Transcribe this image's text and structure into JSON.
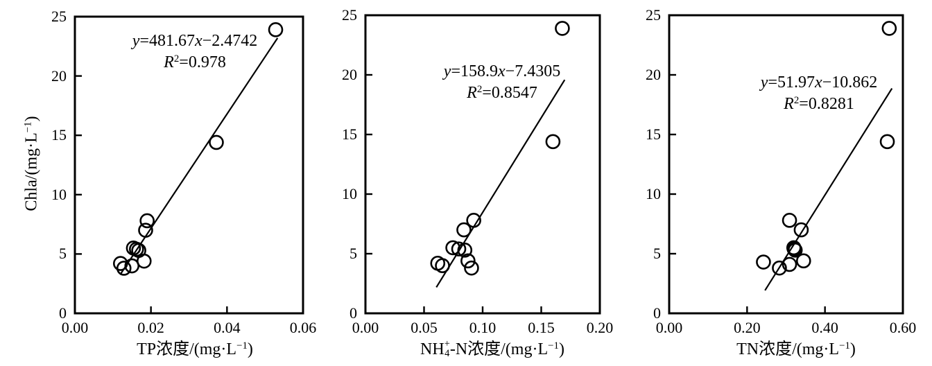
{
  "figure": {
    "background": "#ffffff",
    "ink": "#000000",
    "marker": "open-circle",
    "shared_y_tick_labels": [
      "0",
      "5",
      "10",
      "15",
      "20",
      "25"
    ]
  },
  "chart_data": [
    {
      "id": "chla-vs-tp",
      "type": "scatter",
      "title": "",
      "xlabel_text": "TP浓度/(mg·L⁻¹)",
      "ylabel_text": "Chla/(mg·L⁻¹)",
      "xlabel": {
        "pre": "TP浓度/(mg·L",
        "sup": "−1",
        "post": ")"
      },
      "ylabel": {
        "pre": "Chla/(mg·L",
        "sup": "−1",
        "post": ")"
      },
      "xlim": [
        0,
        0.06
      ],
      "ylim": [
        0,
        25
      ],
      "x_tick_values": [
        0,
        0.02,
        0.04,
        0.06
      ],
      "x_tick_labels": [
        "0.00",
        "0.02",
        "0.04",
        "0.06"
      ],
      "y_tick_values": [
        0,
        5,
        10,
        15,
        20,
        25
      ],
      "y_tick_labels": [
        "0",
        "5",
        "10",
        "15",
        "20",
        "25"
      ],
      "points": [
        [
          0.012,
          4.2
        ],
        [
          0.0129,
          3.8
        ],
        [
          0.015,
          4.0
        ],
        [
          0.0154,
          5.5
        ],
        [
          0.0162,
          5.4
        ],
        [
          0.0168,
          5.3
        ],
        [
          0.0182,
          4.4
        ],
        [
          0.0186,
          7.0
        ],
        [
          0.019,
          7.8
        ],
        [
          0.0372,
          14.4
        ],
        [
          0.0528,
          23.9
        ]
      ],
      "trend": {
        "slope": 481.67,
        "intercept": -2.4742,
        "x_start": 0.0119,
        "x_end": 0.0533
      },
      "equation_text": "y=481.67x−2.4742",
      "r2_text": "R²=0.978",
      "equation": {
        "y_var": "y",
        "mid": "=481.67",
        "x_var": "x",
        "tail": "−2.4742"
      },
      "r2": {
        "r_var": "R",
        "sup": "2",
        "tail": "=0.978"
      }
    },
    {
      "id": "chla-vs-nh4n",
      "type": "scatter",
      "title": "",
      "xlabel_text": "NH₄⁺-N浓度/(mg·L⁻¹)",
      "xlabel": {
        "pre1": "NH",
        "stack_sup": "+",
        "stack_sub": "4",
        "pre2": "-N浓度/(mg·L",
        "sup": "−1",
        "post": ")"
      },
      "xlim": [
        0,
        0.2
      ],
      "ylim": [
        0,
        25
      ],
      "x_tick_values": [
        0,
        0.05,
        0.1,
        0.15,
        0.2
      ],
      "x_tick_labels": [
        "0.00",
        "0.05",
        "0.10",
        "0.15",
        "0.20"
      ],
      "y_tick_values": [
        0,
        5,
        10,
        15,
        20,
        25
      ],
      "y_tick_labels": [
        "0",
        "5",
        "10",
        "15",
        "20",
        "25"
      ],
      "points": [
        [
          0.0617,
          4.2
        ],
        [
          0.0657,
          4.0
        ],
        [
          0.0746,
          5.5
        ],
        [
          0.0796,
          5.4
        ],
        [
          0.084,
          7.0
        ],
        [
          0.0848,
          5.3
        ],
        [
          0.0875,
          4.4
        ],
        [
          0.0905,
          3.8
        ],
        [
          0.0924,
          7.8
        ],
        [
          0.16,
          14.4
        ],
        [
          0.168,
          23.9
        ]
      ],
      "trend": {
        "slope": 158.9,
        "intercept": -7.4305,
        "x_start": 0.0605,
        "x_end": 0.17
      },
      "equation_text": "y=158.9x−7.4305",
      "r2_text": "R²=0.8547",
      "equation": {
        "y_var": "y",
        "mid": "=158.9",
        "x_var": "x",
        "tail": "−7.4305"
      },
      "r2": {
        "r_var": "R",
        "sup": "2",
        "tail": "=0.8547"
      }
    },
    {
      "id": "chla-vs-tn",
      "type": "scatter",
      "title": "",
      "xlabel_text": "TN浓度/(mg·L⁻¹)",
      "xlabel": {
        "pre": "TN浓度/(mg·L",
        "sup": "−1",
        "post": ")"
      },
      "xlim": [
        0,
        0.6
      ],
      "ylim": [
        0,
        25
      ],
      "x_tick_values": [
        0,
        0.2,
        0.4,
        0.6
      ],
      "x_tick_labels": [
        "0.00",
        "0.20",
        "0.40",
        "0.60"
      ],
      "y_tick_values": [
        0,
        5,
        10,
        15,
        20,
        25
      ],
      "y_tick_labels": [
        "0",
        "5",
        "10",
        "15",
        "20",
        "25"
      ],
      "points": [
        [
          0.242,
          4.3
        ],
        [
          0.283,
          3.8
        ],
        [
          0.309,
          4.1
        ],
        [
          0.309,
          7.8
        ],
        [
          0.32,
          5.5
        ],
        [
          0.3235,
          5.3
        ],
        [
          0.321,
          5.4
        ],
        [
          0.339,
          7.0
        ],
        [
          0.345,
          4.4
        ],
        [
          0.56,
          14.4
        ],
        [
          0.565,
          23.9
        ]
      ],
      "trend": {
        "slope": 51.97,
        "intercept": -10.862,
        "x_start": 0.246,
        "x_end": 0.572
      },
      "equation_text": "y=51.97x−10.862",
      "r2_text": "R²=0.8281",
      "equation": {
        "y_var": "y",
        "mid": "=51.97",
        "x_var": "x",
        "tail": "−10.862"
      },
      "r2": {
        "r_var": "R",
        "sup": "2",
        "tail": "=0.8281"
      }
    }
  ]
}
